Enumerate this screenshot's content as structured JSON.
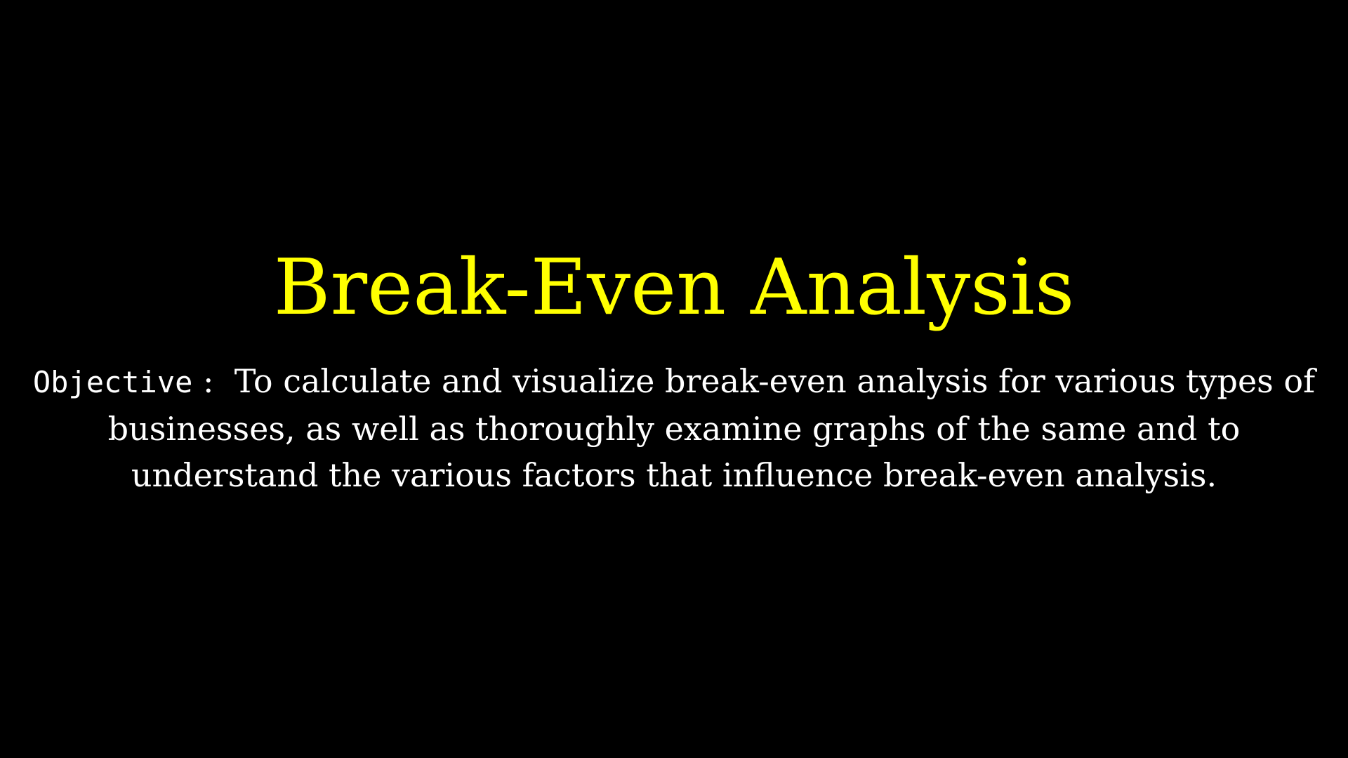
{
  "title": "Break-Even Analysis",
  "objective": {
    "label": "Objective",
    "separator": ":",
    "text": "To calculate and visualize break-even analysis for various types of businesses, as well as thoroughly examine graphs of the same and to understand the various factors that influence break-even analysis."
  },
  "colors": {
    "background": "#000000",
    "title": "#ffff00",
    "body": "#ffffff"
  }
}
